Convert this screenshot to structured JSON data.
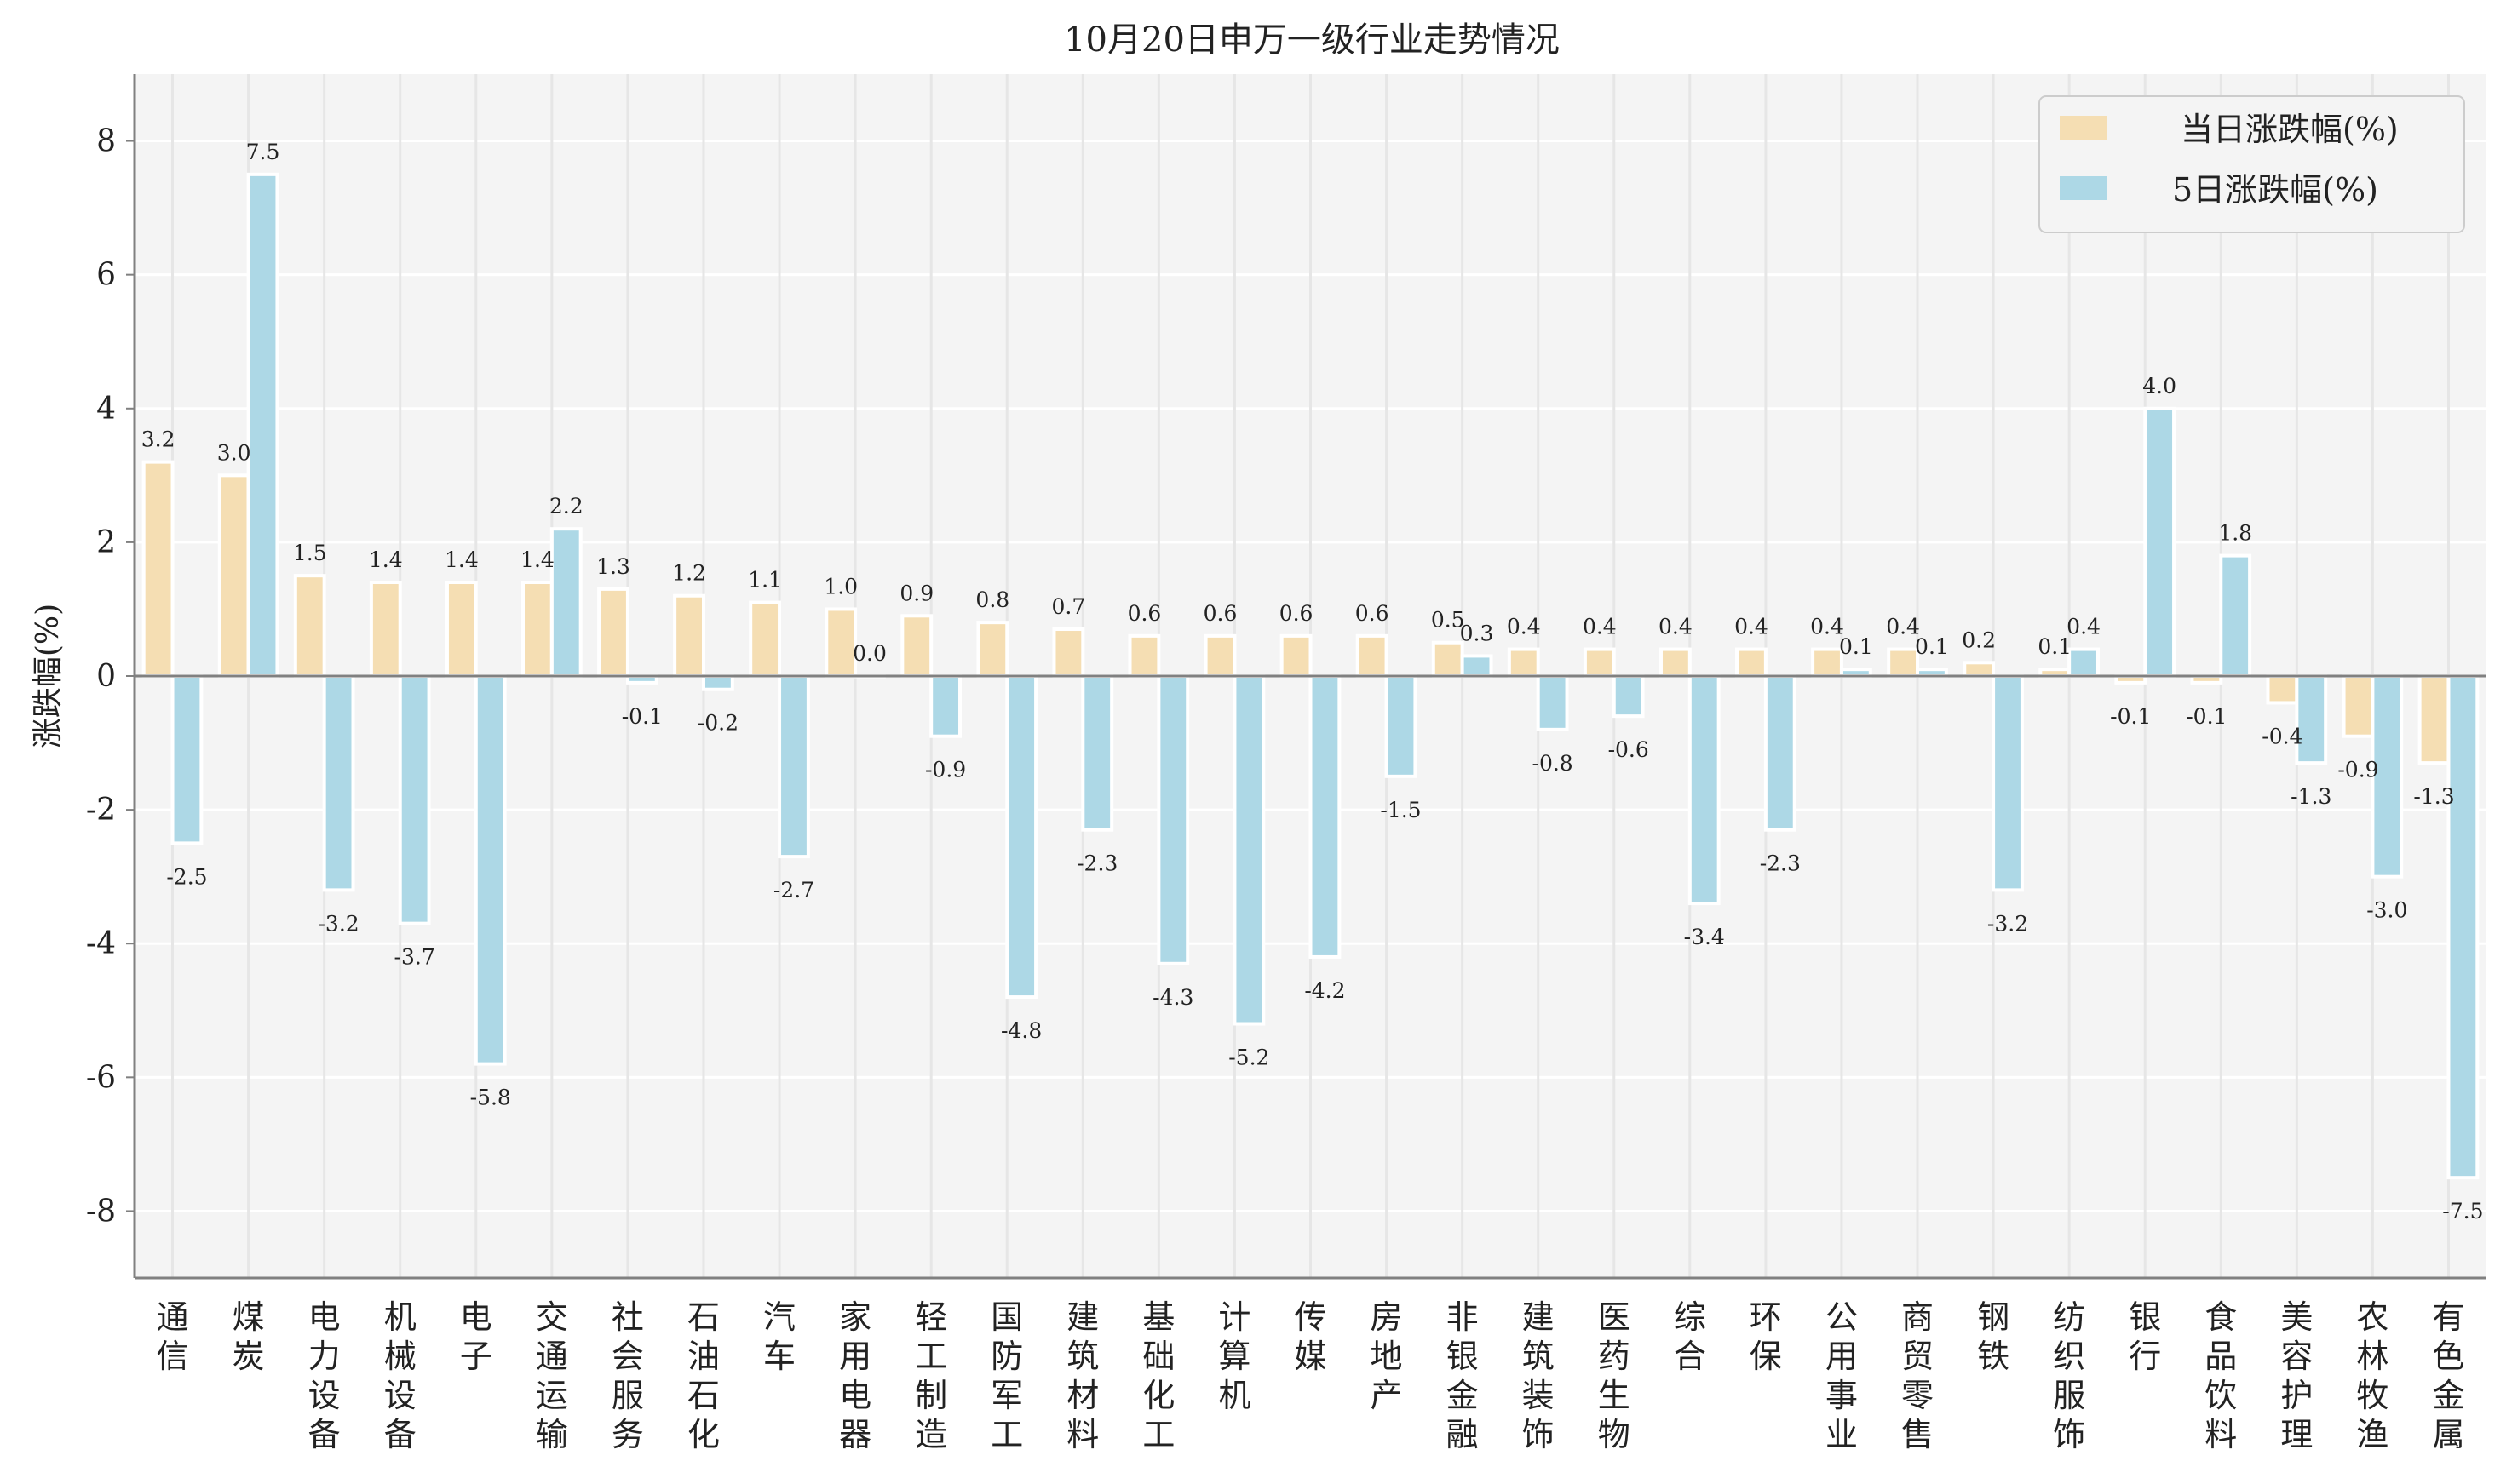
{
  "chart_data": {
    "type": "bar",
    "title": "10月20日申万一级行业走势情况",
    "xlabel": "",
    "ylabel": "涨跌幅(%)",
    "ylim": [
      -9,
      9
    ],
    "yticks": [
      -8,
      -6,
      -4,
      -2,
      0,
      2,
      4,
      6,
      8
    ],
    "grid": true,
    "legend_position": "top-right",
    "categories": [
      "通信",
      "煤炭",
      "电力设备",
      "机械设备",
      "电子",
      "交通运输",
      "社会服务",
      "石油石化",
      "汽车",
      "家用电器",
      "轻工制造",
      "国防军工",
      "建筑材料",
      "基础化工",
      "计算机",
      "传媒",
      "房地产",
      "非银金融",
      "建筑装饰",
      "医药生物",
      "综合",
      "环保",
      "公用事业",
      "商贸零售",
      "钢铁",
      "纺织服饰",
      "银行",
      "食品饮料",
      "美容护理",
      "农林牧渔",
      "有色金属"
    ],
    "series": [
      {
        "name": "当日涨跌幅(%)",
        "color": "#F5DEB3",
        "values": [
          3.2,
          3.0,
          1.5,
          1.4,
          1.4,
          1.4,
          1.3,
          1.2,
          1.1,
          1.0,
          0.9,
          0.8,
          0.7,
          0.6,
          0.6,
          0.6,
          0.6,
          0.5,
          0.4,
          0.4,
          0.4,
          0.4,
          0.4,
          0.4,
          0.2,
          0.1,
          -0.1,
          -0.1,
          -0.4,
          -0.9,
          -1.3
        ]
      },
      {
        "name": "5日涨跌幅(%)",
        "color": "#ADD8E6",
        "values": [
          -2.5,
          7.5,
          -3.2,
          -3.7,
          -5.8,
          2.2,
          -0.1,
          -0.2,
          -2.7,
          0.0,
          -0.9,
          -4.8,
          -2.3,
          -4.3,
          -5.2,
          -4.2,
          -1.5,
          0.3,
          -0.8,
          -0.6,
          -3.4,
          -2.3,
          0.1,
          0.1,
          -3.2,
          0.4,
          4.0,
          1.8,
          -1.3,
          -3.0,
          -7.5
        ]
      }
    ]
  }
}
